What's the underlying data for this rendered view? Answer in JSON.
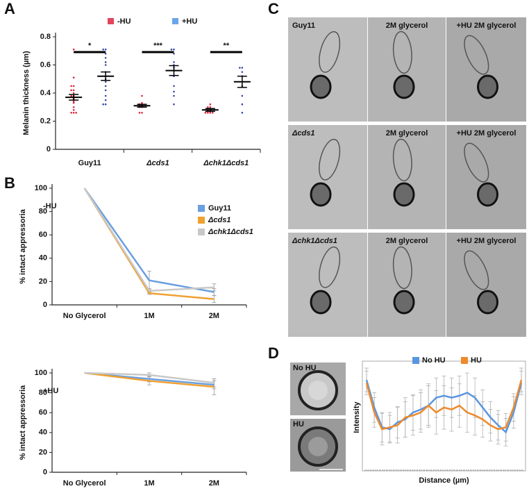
{
  "panel_labels": [
    "A",
    "B",
    "C",
    "D"
  ],
  "chart_data": [
    {
      "type": "dot",
      "ylabel": "Melanin thickness (µm)",
      "categories": [
        "Guy11",
        "Δcds1",
        "Δchk1Δcds1"
      ],
      "annotations": [
        "*",
        "***",
        "**"
      ],
      "ylim": [
        0,
        0.8
      ],
      "yticks": [
        0,
        0.2,
        0.4,
        0.6,
        0.8
      ],
      "legend": "top",
      "series": [
        {
          "name": "-HU",
          "color": "#e2445c",
          "point_color": "#d8283c",
          "values": [
            0.37,
            0.31,
            0.28
          ],
          "errors": [
            0.02,
            0.01,
            0.01
          ],
          "points": [
            [
              0.71,
              0.51,
              0.45,
              0.45,
              0.42,
              0.42,
              0.4,
              0.38,
              0.38,
              0.37,
              0.36,
              0.35,
              0.34,
              0.33,
              0.3,
              0.28,
              0.26,
              0.26,
              0.26
            ],
            [
              0.38,
              0.33,
              0.32,
              0.32,
              0.31,
              0.31,
              0.3,
              0.3,
              0.26,
              0.26
            ],
            [
              0.32,
              0.3,
              0.3,
              0.28,
              0.28,
              0.27,
              0.27,
              0.26,
              0.26,
              0.26,
              0.26
            ]
          ]
        },
        {
          "name": "+HU",
          "color": "#6aa6e8",
          "point_color": "#3548a8",
          "values": [
            0.52,
            0.56,
            0.48
          ],
          "errors": [
            0.03,
            0.035,
            0.04
          ],
          "points": [
            [
              0.71,
              0.71,
              0.68,
              0.65,
              0.62,
              0.6,
              0.55,
              0.52,
              0.5,
              0.48,
              0.45,
              0.42,
              0.38,
              0.35,
              0.32,
              0.32
            ],
            [
              0.71,
              0.71,
              0.68,
              0.62,
              0.6,
              0.58,
              0.56,
              0.52,
              0.45,
              0.41,
              0.38,
              0.32
            ],
            [
              0.58,
              0.58,
              0.55,
              0.52,
              0.45,
              0.38,
              0.32,
              0.26
            ]
          ]
        }
      ]
    },
    {
      "type": "line",
      "title": "-HU",
      "ylabel": "% intact appressoria",
      "categories": [
        "No Glycerol",
        "1M",
        "2M"
      ],
      "ylim": [
        0,
        100
      ],
      "yticks": [
        0,
        20,
        40,
        60,
        80,
        100
      ],
      "legend": "right",
      "series": [
        {
          "name": "Guy11",
          "color": "#6a9fe0",
          "values": [
            100,
            21,
            11
          ],
          "errors": [
            0,
            8,
            3
          ]
        },
        {
          "name": "Δcds1",
          "color": "#f0a030",
          "values": [
            100,
            10,
            5
          ],
          "errors": [
            0,
            1,
            3
          ]
        },
        {
          "name": "Δchk1Δcds1",
          "color": "#c8c8c8",
          "values": [
            100,
            12,
            15
          ],
          "errors": [
            0,
            2,
            3
          ]
        }
      ]
    },
    {
      "type": "line",
      "title": "+HU",
      "ylabel": "% intact appressoria",
      "categories": [
        "No Glycerol",
        "1M",
        "2M"
      ],
      "ylim": [
        0,
        100
      ],
      "yticks": [
        0,
        20,
        40,
        60,
        80,
        100
      ],
      "series": [
        {
          "color": "#6a9fe0",
          "values": [
            100,
            94,
            88
          ],
          "errors": [
            0,
            3,
            4
          ]
        },
        {
          "color": "#f0a030",
          "values": [
            100,
            92,
            86
          ],
          "errors": [
            0,
            4,
            8
          ]
        },
        {
          "color": "#c8c8c8",
          "values": [
            100,
            98,
            90
          ],
          "errors": [
            0,
            2,
            4
          ]
        }
      ]
    },
    {
      "type": "line",
      "xlabel": "Distance (µm)",
      "ylabel": "Intensity",
      "insets": [
        "No HU",
        "HU"
      ],
      "ylim": [
        0,
        100
      ],
      "legend": "top",
      "frame": true,
      "series": [
        {
          "name": "No HU",
          "color": "#5a96e0",
          "values": [
            88,
            60,
            40,
            38,
            45,
            48,
            55,
            58,
            62,
            70,
            72,
            70,
            72,
            75,
            70,
            60,
            50,
            42,
            35,
            55,
            85
          ],
          "errors": [
            12,
            15,
            15,
            14,
            16,
            18,
            18,
            20,
            20,
            20,
            20,
            20,
            20,
            20,
            20,
            18,
            16,
            15,
            14,
            16,
            12
          ]
        },
        {
          "name": "HU",
          "color": "#ef8a2a",
          "values": [
            85,
            55,
            38,
            40,
            42,
            50,
            52,
            55,
            62,
            55,
            60,
            58,
            62,
            55,
            52,
            48,
            42,
            38,
            40,
            60,
            88
          ],
          "errors": [
            12,
            15,
            16,
            15,
            18,
            20,
            20,
            20,
            22,
            22,
            22,
            22,
            22,
            20,
            20,
            18,
            16,
            15,
            14,
            14,
            12
          ]
        }
      ]
    }
  ],
  "micrographs": {
    "rows": [
      [
        "Guy11",
        "2M glycerol",
        "+HU 2M glycerol"
      ],
      [
        "Δcds1",
        "2M glycerol",
        "+HU 2M glycerol"
      ],
      [
        "Δchk1Δcds1",
        "2M glycerol",
        "+HU 2M glycerol"
      ]
    ]
  }
}
